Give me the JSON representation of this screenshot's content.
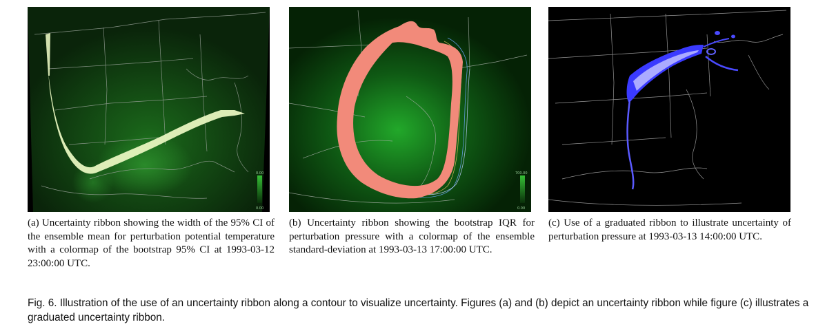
{
  "subfigures": [
    {
      "id": "a",
      "caption": "(a) Uncertainty ribbon showing the width of the 95% CI of the ensemble mean for perturbation potential temperature with a colormap of the bootstrap 95% CI at 1993-03-12 23:00:00 UTC.",
      "colorbar_top": "0.00",
      "colorbar_bottom": "0.00",
      "ribbon_color": "#e8f5c0",
      "field_color": "#1f8a1f"
    },
    {
      "id": "b",
      "caption": "(b) Uncertainty ribbon showing the bootstrap IQR for perturbation pressure with a colormap of the ensemble standard-deviation at 1993-03-13 17:00:00 UTC.",
      "colorbar_top": "700.00",
      "colorbar_bottom": "0.00",
      "ribbon_color": "#f28a7a",
      "field_color": "#1f9a2a"
    },
    {
      "id": "c",
      "caption": "(c) Use of a graduated ribbon to illustrate uncertainty of perturbation pressure at 1993-03-13 14:00:00 UTC.",
      "ribbon_color": "#3a3aff"
    }
  ],
  "figure_caption": "Fig. 6. Illustration of the use of an uncertainty ribbon along a contour to visualize uncertainty. Figures (a) and (b) depict an uncertainty ribbon while figure (c) illustrates a graduated uncertainty ribbon."
}
